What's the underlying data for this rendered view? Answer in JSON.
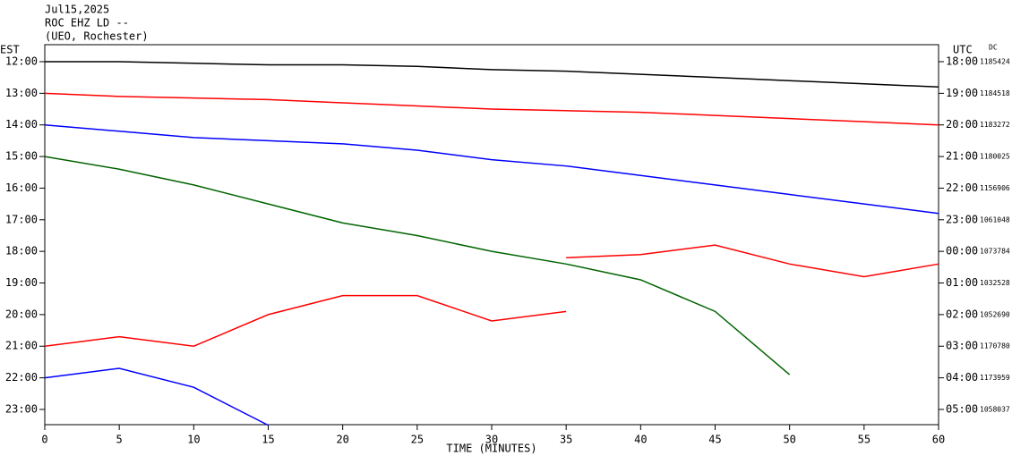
{
  "chart_data": {
    "type": "helicorder",
    "header": [
      "Jul15,2025",
      "ROC EHZ LD --",
      "(UEO, Rochester)"
    ],
    "left_axis_label": "EST",
    "right_axis_label": "UTC",
    "dc_label": "DC",
    "rows_left": [
      "12:00",
      "13:00",
      "14:00",
      "15:00",
      "16:00",
      "17:00",
      "18:00",
      "19:00",
      "20:00",
      "21:00",
      "22:00",
      "23:00"
    ],
    "rows_right": [
      "18:00",
      "19:00",
      "20:00",
      "21:00",
      "22:00",
      "23:00",
      "00:00",
      "01:00",
      "02:00",
      "03:00",
      "04:00",
      "05:00"
    ],
    "dc_values": [
      1185424,
      1184518,
      1183272,
      1180025,
      1156906,
      1061048,
      1073784,
      1032528,
      1052690,
      1170780,
      1173959,
      1058037
    ],
    "xlabel": "TIME (MINUTES)",
    "xlim": [
      0,
      60
    ],
    "xticks": [
      0,
      5,
      10,
      15,
      20,
      25,
      30,
      35,
      40,
      45,
      50,
      55,
      60
    ],
    "x": [
      0,
      5,
      10,
      15,
      20,
      25,
      30,
      35,
      40,
      45,
      50,
      55,
      60
    ],
    "series": [
      {
        "color": "#000000",
        "values": [
          0,
          0,
          0.05,
          0.1,
          0.1,
          0.15,
          0.25,
          0.3,
          0.4,
          0.5,
          0.6,
          0.7,
          0.8
        ]
      },
      {
        "color": "#ff0000",
        "values": [
          0,
          0.1,
          0.15,
          0.2,
          0.3,
          0.4,
          0.5,
          0.55,
          0.6,
          0.7,
          0.8,
          0.9,
          1.0
        ]
      },
      {
        "color": "#0000ff",
        "values": [
          0,
          0.2,
          0.4,
          0.5,
          0.6,
          0.8,
          1.1,
          1.3,
          1.6,
          1.9,
          2.2,
          2.5,
          2.8
        ]
      },
      {
        "color": "#006400",
        "values": [
          0,
          0.4,
          0.9,
          1.5,
          2.1,
          2.5,
          3.0,
          3.4,
          3.9,
          4.9,
          6.9,
          null,
          null
        ]
      },
      {
        "color": "#000000",
        "values": [
          null,
          null,
          null,
          null,
          null,
          null,
          null,
          null,
          null,
          null,
          null,
          null,
          null
        ]
      },
      {
        "color": "#ff0000",
        "values": [
          null,
          null,
          null,
          null,
          null,
          null,
          null,
          1.2,
          1.1,
          0.8,
          1.4,
          1.8,
          1.4
        ]
      },
      {
        "color": "#0000ff",
        "values": [
          null,
          null,
          null,
          null,
          null,
          null,
          null,
          null,
          null,
          null,
          null,
          null,
          null
        ]
      },
      {
        "color": "#006400",
        "values": [
          null,
          null,
          null,
          null,
          null,
          null,
          null,
          null,
          null,
          null,
          null,
          null,
          null
        ]
      },
      {
        "color": "#000000",
        "values": [
          null,
          null,
          null,
          null,
          null,
          null,
          null,
          null,
          null,
          null,
          null,
          null,
          null
        ]
      },
      {
        "color": "#ff0000",
        "values": [
          0,
          -0.3,
          0,
          -1.0,
          -1.6,
          -1.6,
          -0.8,
          -1.1,
          null,
          null,
          null,
          null,
          null
        ]
      },
      {
        "color": "#0000ff",
        "values": [
          0,
          -0.3,
          0.3,
          1.5,
          null,
          null,
          null,
          null,
          null,
          null,
          null,
          null,
          null
        ]
      },
      {
        "color": "#006400",
        "values": [
          null,
          null,
          null,
          null,
          null,
          null,
          null,
          null,
          null,
          null,
          null,
          null,
          null
        ]
      }
    ]
  }
}
